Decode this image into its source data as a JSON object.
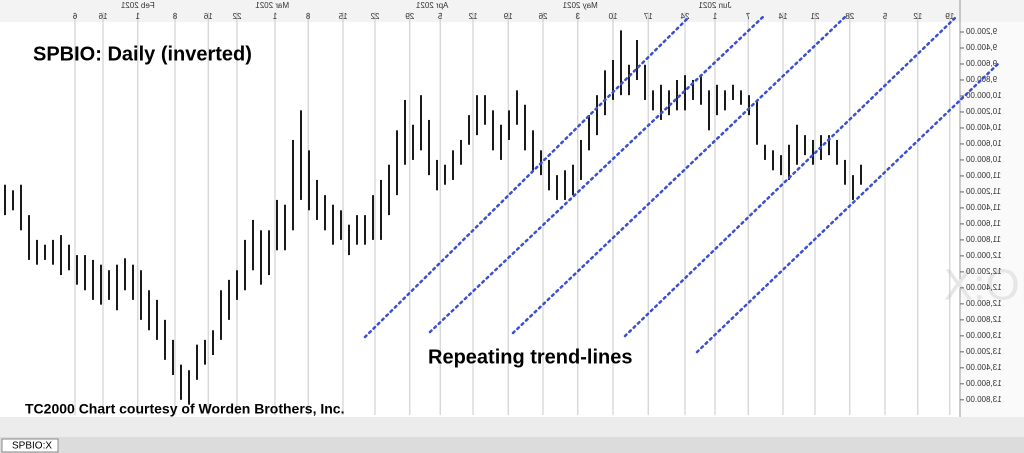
{
  "chart_data": {
    "type": "ohlc",
    "inverted": true,
    "color": "#1a1a1a",
    "title": "SPBIO:  Daily (inverted)",
    "annotation": "Repeating trend-lines",
    "credit": "TC2000 Chart courtesy of Worden Brothers, Inc.",
    "watermark": "SPBIO:X",
    "symbol_tab": "SPBIO:X",
    "low": [
      11110,
      11180,
      11110,
      11490,
      11800,
      11860,
      11800,
      11740,
      11860,
      11990,
      11990,
      12050,
      12110,
      12180,
      12110,
      12030,
      12110,
      12180,
      12430,
      12550,
      12800,
      13050,
      13360,
      13430,
      13110,
      13050,
      12930,
      12430,
      12300,
      12180,
      11800,
      11550,
      11680,
      11680,
      11300,
      11360,
      10550,
      10180,
      10680,
      11050,
      11240,
      11360,
      11430,
      11610,
      11490,
      11490,
      11240,
      11050,
      10860,
      10430,
      10050,
      10360,
      9990,
      10300,
      10800,
      10860,
      10680,
      10550,
      10240,
      9990,
      9990,
      10180,
      10360,
      10180,
      9930,
      10110,
      10430,
      10680,
      10800,
      10990,
      10930,
      10860,
      10550,
      10240,
      9990,
      9680,
      9550,
      9180,
      9610,
      9300,
      9610,
      9930,
      9860,
      9930,
      9800,
      9740,
      9800,
      9740,
      9930,
      9860,
      9930,
      9860,
      9930,
      9990,
      10050,
      10610,
      10680,
      10740,
      10610,
      10360,
      10490,
      10550,
      10490,
      10490,
      10550,
      10800,
      10990,
      10860
    ],
    "high": [
      11490,
      11430,
      11680,
      12050,
      12110,
      12050,
      12110,
      12240,
      12180,
      12360,
      12430,
      12550,
      12610,
      12550,
      12680,
      12430,
      12550,
      12800,
      12930,
      13050,
      13300,
      13490,
      13800,
      13860,
      13550,
      13360,
      13240,
      13050,
      12800,
      12550,
      12430,
      12180,
      12360,
      12240,
      11930,
      11930,
      11680,
      11300,
      11430,
      11550,
      11680,
      11860,
      11800,
      11990,
      11860,
      11860,
      11800,
      11800,
      11490,
      11240,
      10860,
      10800,
      10680,
      10990,
      11180,
      11110,
      11050,
      10860,
      10610,
      10490,
      10360,
      10680,
      10800,
      10550,
      10360,
      10680,
      10930,
      10990,
      11180,
      11300,
      11300,
      11240,
      11050,
      10680,
      10490,
      10240,
      10050,
      9990,
      9990,
      9800,
      10050,
      10180,
      10300,
      10240,
      10180,
      10180,
      10050,
      10110,
      10430,
      10240,
      10180,
      10050,
      10110,
      10240,
      10610,
      10800,
      10930,
      10990,
      11050,
      10860,
      10740,
      10860,
      10800,
      10740,
      10860,
      11110,
      11300,
      11110
    ],
    "xlim": [
      -0.625,
      119.375
    ],
    "ylim": [
      9100,
      13990
    ],
    "xticks": [
      {
        "value": 8.75,
        "label": "6"
      },
      {
        "value": 12.25,
        "label": "16"
      },
      {
        "value": 16.6,
        "label": "1"
      },
      {
        "value": 21.25,
        "label": "8"
      },
      {
        "value": 25.4,
        "label": "16"
      },
      {
        "value": 29,
        "label": "22"
      },
      {
        "value": 33.75,
        "label": "1"
      },
      {
        "value": 37.9,
        "label": "8"
      },
      {
        "value": 42.25,
        "label": "15"
      },
      {
        "value": 46.25,
        "label": "22"
      },
      {
        "value": 50.6,
        "label": "29"
      },
      {
        "value": 54.4,
        "label": "5"
      },
      {
        "value": 58.5,
        "label": "12"
      },
      {
        "value": 62.9,
        "label": "19"
      },
      {
        "value": 67.25,
        "label": "26"
      },
      {
        "value": 71.6,
        "label": "3"
      },
      {
        "value": 76,
        "label": "10"
      },
      {
        "value": 80.4,
        "label": "17"
      },
      {
        "value": 85,
        "label": "24"
      },
      {
        "value": 88.75,
        "label": "1"
      },
      {
        "value": 92.9,
        "label": "7"
      },
      {
        "value": 97.25,
        "label": "14"
      },
      {
        "value": 101.25,
        "label": "21"
      },
      {
        "value": 105.6,
        "label": "28"
      },
      {
        "value": 110,
        "label": "5"
      },
      {
        "value": 114.1,
        "label": "12"
      },
      {
        "value": 118.1,
        "label": "19"
      }
    ],
    "months": [
      {
        "value": 16.6,
        "label": "Feb 2021"
      },
      {
        "value": 33.4,
        "label": "Mar 2021"
      },
      {
        "value": 53.4,
        "label": "Apr 2021"
      },
      {
        "value": 71.9,
        "label": "May 2021"
      },
      {
        "value": 88.75,
        "label": "Jun 2021"
      }
    ],
    "yticks": [
      {
        "value": 9200,
        "label": "9,200.00"
      },
      {
        "value": 9400,
        "label": "9,400.00"
      },
      {
        "value": 9600,
        "label": "9,600.00"
      },
      {
        "value": 9800,
        "label": "9,800.00"
      },
      {
        "value": 10000,
        "label": "10,000.00"
      },
      {
        "value": 10200,
        "label": "10,200.00"
      },
      {
        "value": 10400,
        "label": "10,400.00"
      },
      {
        "value": 10600,
        "label": "10,600.00"
      },
      {
        "value": 10800,
        "label": "10,800.00"
      },
      {
        "value": 11000,
        "label": "11,000.00"
      },
      {
        "value": 11200,
        "label": "11,200.00"
      },
      {
        "value": 11400,
        "label": "11,400.00"
      },
      {
        "value": 11600,
        "label": "11,600.00"
      },
      {
        "value": 11800,
        "label": "11,800.00"
      },
      {
        "value": 12000,
        "label": "12,000.00"
      },
      {
        "value": 12200,
        "label": "12,200.00"
      },
      {
        "value": 12400,
        "label": "12,400.00"
      },
      {
        "value": 12600,
        "label": "12,600.00"
      },
      {
        "value": 12800,
        "label": "12,800.00"
      },
      {
        "value": 13000,
        "label": "13,000.00"
      },
      {
        "value": 13200,
        "label": "13,200.00"
      },
      {
        "value": 13400,
        "label": "13,400.00"
      },
      {
        "value": 13600,
        "label": "13,600.00"
      },
      {
        "value": 13800,
        "label": "13,800.00"
      }
    ],
    "grid": true
  }
}
